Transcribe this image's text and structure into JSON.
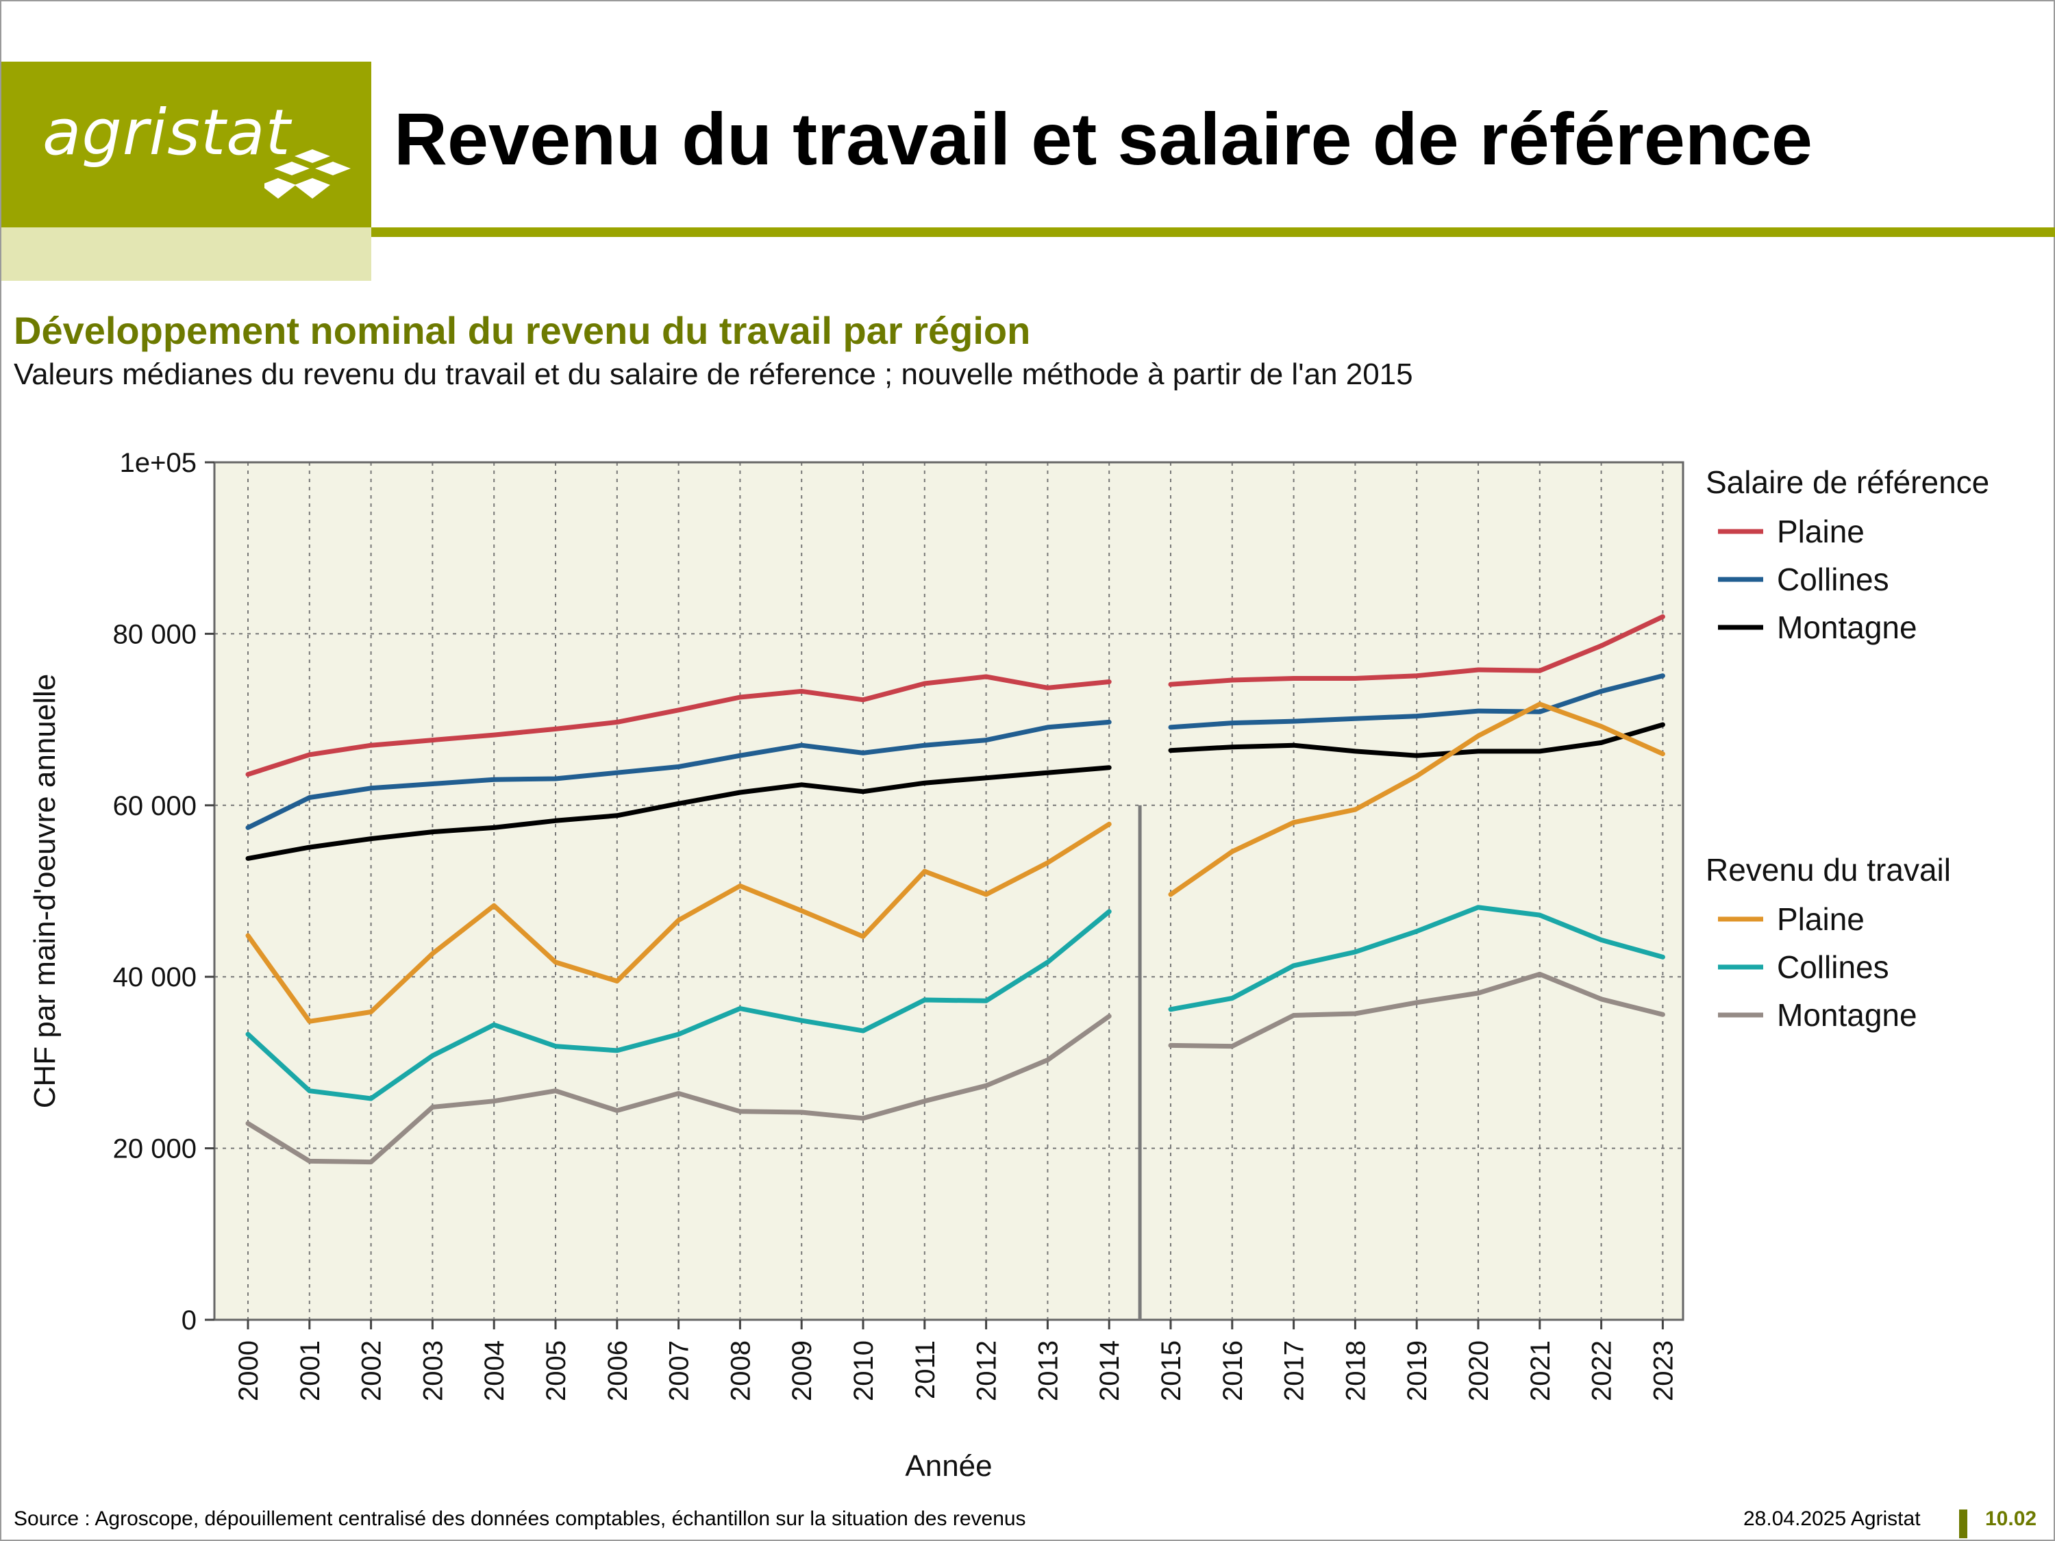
{
  "header": {
    "logo_text": "agristat",
    "title": "Revenu du travail et salaire de référence"
  },
  "subtitle": "Développement nominal du revenu du travail par région",
  "description": "Valeurs médianes du revenu du travail et du salaire de réference ; nouvelle méthode à partir de l'an 2015",
  "colors": {
    "brand": "#9aa400",
    "brand_light": "#e3e6b3",
    "heading": "#6d7a00",
    "plot_bg": "#f3f3e5",
    "plaine_ref": "#c8404a",
    "collines_ref": "#215e91",
    "montagne_ref": "#000000",
    "plaine_rev": "#e0952a",
    "collines_rev": "#1aa7a7",
    "montagne_rev": "#958b86",
    "break_line": "#7a7a7a"
  },
  "chart_data": {
    "type": "line",
    "xlabel": "Année",
    "ylabel": "CHF par main-d'oeuvre annuelle",
    "x": [
      2000,
      2001,
      2002,
      2003,
      2004,
      2005,
      2006,
      2007,
      2008,
      2009,
      2010,
      2011,
      2012,
      2013,
      2014,
      2015,
      2016,
      2017,
      2018,
      2019,
      2020,
      2021,
      2022,
      2023
    ],
    "ylim": [
      0,
      100000
    ],
    "yticks": [
      0,
      20000,
      40000,
      60000,
      80000,
      100000
    ],
    "ytick_labels": [
      "0",
      "20 000",
      "40 000",
      "60 000",
      "80 000",
      "1e+05"
    ],
    "grid": true,
    "method_break": "between 2014 and 2015",
    "legend_position": "right",
    "legend_groups": [
      {
        "title": "Salaire de référence",
        "items": [
          "Plaine",
          "Collines",
          "Montagne"
        ]
      },
      {
        "title": "Revenu du travail",
        "items": [
          "Plaine",
          "Collines",
          "Montagne"
        ]
      }
    ],
    "series": [
      {
        "group": "Salaire de référence",
        "name": "Plaine",
        "color": "#c8404a",
        "values": [
          63600,
          65900,
          67000,
          67600,
          68200,
          68900,
          69700,
          71100,
          72600,
          73300,
          72300,
          74200,
          75000,
          73700,
          74400,
          74100,
          74600,
          74800,
          74800,
          75100,
          75800,
          75700,
          78600,
          82000
        ]
      },
      {
        "group": "Salaire de référence",
        "name": "Collines",
        "color": "#215e91",
        "values": [
          57400,
          60900,
          62000,
          62500,
          63000,
          63100,
          63800,
          64500,
          65800,
          67000,
          66100,
          67000,
          67600,
          69100,
          69700,
          69100,
          69600,
          69800,
          70100,
          70400,
          71000,
          70900,
          73300,
          75100
        ]
      },
      {
        "group": "Salaire de référence",
        "name": "Montagne",
        "color": "#000000",
        "values": [
          53800,
          55100,
          56100,
          56900,
          57400,
          58200,
          58800,
          60200,
          61500,
          62400,
          61600,
          62600,
          63200,
          63800,
          64400,
          66400,
          66800,
          67000,
          66300,
          65800,
          66300,
          66300,
          67300,
          69400
        ]
      },
      {
        "group": "Revenu du travail",
        "name": "Plaine",
        "color": "#e0952a",
        "values": [
          44800,
          34800,
          35900,
          42700,
          48300,
          41700,
          39500,
          46600,
          50600,
          47700,
          44700,
          52300,
          49600,
          53300,
          57800,
          49600,
          54600,
          58000,
          59500,
          63400,
          68100,
          71800,
          69200,
          66000
        ]
      },
      {
        "group": "Revenu du travail",
        "name": "Collines",
        "color": "#1aa7a7",
        "values": [
          33300,
          26700,
          25800,
          30800,
          34400,
          31900,
          31400,
          33300,
          36300,
          34900,
          33700,
          37300,
          37200,
          41700,
          47600,
          36200,
          37500,
          41300,
          42900,
          45300,
          48100,
          47200,
          44300,
          42300
        ]
      },
      {
        "group": "Revenu du travail",
        "name": "Montagne",
        "color": "#958b86",
        "values": [
          22900,
          18500,
          18400,
          24800,
          25500,
          26700,
          24400,
          26400,
          24300,
          24200,
          23500,
          25500,
          27300,
          30300,
          35400,
          32000,
          31900,
          35500,
          35700,
          37000,
          38100,
          40300,
          37400,
          35600
        ]
      }
    ]
  },
  "footer": {
    "source": "Source : Agroscope, dépouillement centralisé des données comptables, échantillon sur la situation des revenus",
    "date": "28.04.2025 Agristat",
    "page": "10.02"
  }
}
